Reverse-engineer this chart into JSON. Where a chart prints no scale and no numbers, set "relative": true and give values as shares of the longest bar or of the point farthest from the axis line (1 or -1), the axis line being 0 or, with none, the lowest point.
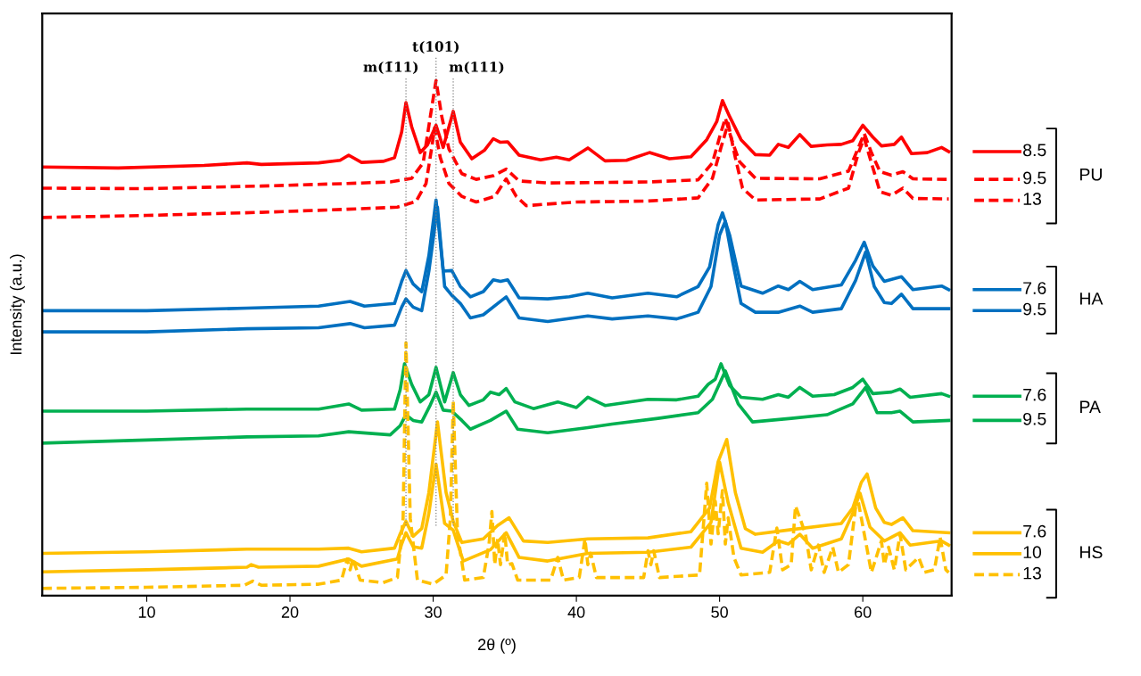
{
  "chart_data": {
    "type": "line",
    "relative": true,
    "xlabel": "2θ (º)",
    "ylabel": "Intensity (a.u.)",
    "xlim": [
      2.7,
      66.2
    ],
    "xticks": [
      10,
      20,
      30,
      40,
      50,
      60
    ],
    "grid": false,
    "legend": "right",
    "marker": "none",
    "annotations": [
      "PU",
      "HA",
      "PA",
      "HS"
    ],
    "ref_lines": [
      {
        "axis": "x",
        "value": 28.1,
        "label": "m(1̄11)",
        "line_style": "dotted",
        "color": "#808080"
      },
      {
        "axis": "x",
        "value": 30.2,
        "label": "t(101)",
        "line_style": "dotted",
        "color": "#808080"
      },
      {
        "axis": "x",
        "value": 31.4,
        "label": "m(111)",
        "line_style": "dotted",
        "color": "#808080"
      }
    ],
    "series": [
      {
        "name": "8.5",
        "color": "#ff0000",
        "line_style": "solid",
        "x": [
          2.7,
          8,
          14,
          17,
          18,
          22,
          23.5,
          24.1,
          25,
          26.5,
          27.3,
          27.8,
          28.1,
          28.5,
          29.1,
          29.6,
          30.2,
          30.7,
          31.4,
          31.9,
          32.7,
          33.6,
          34.2,
          34.7,
          35.2,
          36,
          37.5,
          38.6,
          39.5,
          40.8,
          42,
          43.5,
          45.1,
          46.5,
          48,
          49.1,
          49.8,
          50.2,
          50.7,
          51.5,
          52.5,
          53.5,
          54.1,
          54.8,
          55.6,
          56.4,
          57.5,
          58.5,
          59.3,
          60.0,
          60.7,
          61.3,
          62.2,
          62.7,
          63.4,
          64.5,
          65.5,
          66
        ],
        "values": [
          0.832,
          0.83,
          0.835,
          0.84,
          0.837,
          0.84,
          0.845,
          0.855,
          0.841,
          0.843,
          0.85,
          0.9,
          0.957,
          0.91,
          0.86,
          0.875,
          0.913,
          0.87,
          0.94,
          0.88,
          0.848,
          0.865,
          0.887,
          0.88,
          0.881,
          0.855,
          0.846,
          0.851,
          0.846,
          0.869,
          0.844,
          0.845,
          0.86,
          0.848,
          0.852,
          0.885,
          0.92,
          0.961,
          0.93,
          0.885,
          0.856,
          0.855,
          0.876,
          0.87,
          0.895,
          0.872,
          0.875,
          0.876,
          0.883,
          0.913,
          0.89,
          0.873,
          0.876,
          0.89,
          0.858,
          0.86,
          0.87,
          0.862
        ]
      },
      {
        "name": "9.5",
        "color": "#ff0000",
        "line_style": "dashed",
        "x": [
          2.7,
          10,
          18,
          24,
          27,
          28.5,
          29.3,
          29.8,
          30.2,
          30.6,
          31.1,
          32,
          33,
          34.2,
          35.1,
          36,
          38,
          42,
          45,
          48.5,
          49.5,
          50.0,
          50.4,
          50.9,
          51.4,
          52.5,
          57,
          59,
          59.7,
          60.1,
          60.6,
          61.2,
          62,
          62.8,
          63.5,
          66
        ],
        "values": [
          0.791,
          0.79,
          0.795,
          0.8,
          0.803,
          0.81,
          0.84,
          0.93,
          1.0,
          0.93,
          0.867,
          0.819,
          0.808,
          0.815,
          0.828,
          0.805,
          0.801,
          0.802,
          0.803,
          0.807,
          0.84,
          0.89,
          0.927,
          0.88,
          0.842,
          0.81,
          0.809,
          0.824,
          0.87,
          0.897,
          0.86,
          0.823,
          0.816,
          0.823,
          0.809,
          0.808
        ]
      },
      {
        "name": "13",
        "color": "#ff0000",
        "line_style": "dashed",
        "x": [
          2.7,
          10,
          18,
          24,
          27.5,
          28.8,
          29.5,
          29.9,
          30.1,
          30.5,
          31.1,
          32,
          33,
          34.3,
          35.1,
          35.8,
          36.5,
          40,
          45,
          48.5,
          49.5,
          50.1,
          50.6,
          51.1,
          51.6,
          52.5,
          57,
          59,
          59.7,
          60.1,
          60.6,
          61.2,
          62,
          62.8,
          63.5,
          66
        ],
        "values": [
          0.734,
          0.738,
          0.744,
          0.75,
          0.754,
          0.765,
          0.8,
          0.87,
          0.908,
          0.85,
          0.8,
          0.775,
          0.764,
          0.775,
          0.809,
          0.775,
          0.757,
          0.764,
          0.766,
          0.772,
          0.81,
          0.87,
          0.917,
          0.85,
          0.791,
          0.768,
          0.77,
          0.791,
          0.86,
          0.888,
          0.84,
          0.784,
          0.777,
          0.791,
          0.771,
          0.77
        ]
      },
      {
        "name": "7.6",
        "color": "#0070c0",
        "line_style": "solid",
        "x": [
          2.7,
          10,
          17,
          22,
          24.2,
          25.2,
          27.3,
          27.8,
          28.1,
          28.6,
          29.2,
          29.7,
          30.2,
          30.7,
          31.3,
          31.9,
          32.6,
          33.5,
          34.2,
          34.7,
          35.2,
          36,
          38,
          39.5,
          40.8,
          42.5,
          45,
          47,
          48.5,
          49.3,
          49.9,
          50.2,
          50.7,
          51.5,
          53,
          54.1,
          54.8,
          55.6,
          56.5,
          58.5,
          59.5,
          60.1,
          60.7,
          61.5,
          62.7,
          63.5,
          65.5,
          66
        ],
        "values": [
          0.553,
          0.553,
          0.558,
          0.562,
          0.571,
          0.562,
          0.567,
          0.61,
          0.631,
          0.605,
          0.59,
          0.66,
          0.768,
          0.63,
          0.631,
          0.6,
          0.58,
          0.59,
          0.613,
          0.61,
          0.613,
          0.578,
          0.576,
          0.58,
          0.587,
          0.578,
          0.587,
          0.58,
          0.6,
          0.638,
          0.72,
          0.743,
          0.7,
          0.601,
          0.587,
          0.601,
          0.594,
          0.61,
          0.594,
          0.603,
          0.651,
          0.686,
          0.64,
          0.61,
          0.619,
          0.594,
          0.601,
          0.594
        ]
      },
      {
        "name": "9.5",
        "color": "#0070c0",
        "line_style": "solid",
        "x": [
          2.7,
          10,
          17,
          22,
          24.2,
          25.2,
          27.3,
          27.8,
          28.1,
          28.6,
          29.2,
          29.7,
          30.3,
          30.8,
          31.3,
          31.9,
          32.6,
          33.5,
          34.5,
          35.1,
          36,
          38,
          40.8,
          42.5,
          45,
          47,
          48.5,
          49.4,
          50.0,
          50.4,
          50.9,
          51.5,
          52.5,
          54.1,
          55.6,
          56.5,
          58.5,
          59.5,
          60.2,
          60.8,
          61.5,
          62,
          62.7,
          63.5,
          66
        ],
        "values": [
          0.512,
          0.512,
          0.518,
          0.52,
          0.528,
          0.52,
          0.525,
          0.56,
          0.576,
          0.56,
          0.553,
          0.63,
          0.754,
          0.6,
          0.583,
          0.567,
          0.539,
          0.545,
          0.567,
          0.58,
          0.539,
          0.532,
          0.543,
          0.537,
          0.543,
          0.537,
          0.55,
          0.6,
          0.7,
          0.727,
          0.65,
          0.567,
          0.55,
          0.55,
          0.562,
          0.55,
          0.557,
          0.612,
          0.667,
          0.6,
          0.569,
          0.567,
          0.585,
          0.557,
          0.557
        ]
      },
      {
        "name": "7.6",
        "color": "#00b050",
        "line_style": "solid",
        "x": [
          2.7,
          10,
          17,
          22,
          24.1,
          25,
          27.3,
          27.7,
          28.0,
          28.5,
          29.1,
          29.7,
          30.2,
          30.8,
          31.4,
          31.9,
          32.5,
          33.5,
          34.0,
          34.6,
          35.1,
          35.7,
          37,
          38.7,
          40,
          40.8,
          42,
          45,
          47,
          48.5,
          49.2,
          49.7,
          50.1,
          50.7,
          51.5,
          53,
          54.1,
          54.8,
          55.6,
          56.5,
          58,
          59.3,
          60.0,
          60.7,
          62,
          62.6,
          63.3,
          65.5,
          66
        ],
        "values": [
          0.358,
          0.358,
          0.362,
          0.362,
          0.372,
          0.36,
          0.362,
          0.4,
          0.45,
          0.41,
          0.376,
          0.39,
          0.443,
          0.376,
          0.433,
          0.39,
          0.369,
          0.38,
          0.395,
          0.39,
          0.402,
          0.376,
          0.363,
          0.376,
          0.365,
          0.385,
          0.369,
          0.381,
          0.38,
          0.387,
          0.41,
          0.42,
          0.45,
          0.408,
          0.385,
          0.381,
          0.39,
          0.385,
          0.404,
          0.387,
          0.39,
          0.404,
          0.42,
          0.392,
          0.395,
          0.401,
          0.385,
          0.392,
          0.387
        ]
      },
      {
        "name": "9.5",
        "color": "#00b050",
        "line_style": "solid",
        "x": [
          2.7,
          10,
          17,
          22,
          24.1,
          27,
          27.7,
          28.1,
          28.6,
          29.2,
          29.8,
          30.2,
          30.7,
          31.3,
          32,
          32.6,
          34,
          35.1,
          35.9,
          38,
          40.8,
          42.5,
          45.7,
          48.5,
          49.5,
          50.4,
          51.3,
          52.3,
          55,
          57.5,
          59.3,
          60.2,
          61,
          62,
          62.6,
          63.5,
          66
        ],
        "values": [
          0.296,
          0.302,
          0.308,
          0.31,
          0.318,
          0.312,
          0.33,
          0.351,
          0.34,
          0.337,
          0.37,
          0.395,
          0.36,
          0.358,
          0.34,
          0.323,
          0.34,
          0.358,
          0.323,
          0.316,
          0.326,
          0.333,
          0.344,
          0.355,
          0.381,
          0.436,
          0.372,
          0.337,
          0.344,
          0.351,
          0.372,
          0.404,
          0.355,
          0.355,
          0.358,
          0.337,
          0.34
        ]
      },
      {
        "name": "7.6",
        "color": "#ffc000",
        "line_style": "solid",
        "x": [
          2.7,
          10,
          17,
          22,
          24.1,
          25,
          27.3,
          27.7,
          28.1,
          28.6,
          29.2,
          29.7,
          30.3,
          30.9,
          31.4,
          32,
          33.5,
          34.5,
          35.3,
          36.3,
          38,
          40.8,
          45,
          48,
          49.3,
          49.9,
          50.5,
          51.1,
          51.8,
          52.5,
          55,
          58.5,
          59.3,
          59.9,
          60.3,
          60.9,
          61.5,
          62,
          62.8,
          63.5,
          66
        ],
        "values": [
          0.082,
          0.085,
          0.09,
          0.09,
          0.092,
          0.085,
          0.092,
          0.12,
          0.144,
          0.115,
          0.13,
          0.2,
          0.337,
          0.2,
          0.144,
          0.103,
          0.11,
          0.136,
          0.151,
          0.106,
          0.103,
          0.11,
          0.112,
          0.124,
          0.17,
          0.26,
          0.303,
          0.2,
          0.13,
          0.119,
          0.128,
          0.14,
          0.17,
          0.22,
          0.236,
          0.17,
          0.142,
          0.138,
          0.151,
          0.126,
          0.122
        ]
      },
      {
        "name": "10",
        "color": "#ffc000",
        "line_style": "solid",
        "x": [
          2.7,
          10,
          17,
          17.3,
          17.8,
          22,
          24.1,
          25,
          27.5,
          27.8,
          28.1,
          28.6,
          29.2,
          29.7,
          30.2,
          30.8,
          31.4,
          32.1,
          34,
          35.1,
          36,
          38,
          40.8,
          45,
          48,
          49.4,
          50.0,
          50.6,
          51.5,
          53,
          54.1,
          54.8,
          55.6,
          56.5,
          58.5,
          59.3,
          59.8,
          60.5,
          61.5,
          62.6,
          63.3,
          65.5,
          66
        ],
        "values": [
          0.046,
          0.05,
          0.055,
          0.06,
          0.055,
          0.057,
          0.071,
          0.057,
          0.071,
          0.1,
          0.122,
          0.095,
          0.092,
          0.16,
          0.255,
          0.14,
          0.127,
          0.067,
          0.089,
          0.122,
          0.074,
          0.067,
          0.082,
          0.084,
          0.094,
          0.142,
          0.259,
          0.18,
          0.092,
          0.084,
          0.106,
          0.1,
          0.119,
          0.092,
          0.11,
          0.16,
          0.199,
          0.133,
          0.106,
          0.122,
          0.098,
          0.106,
          0.098
        ]
      },
      {
        "name": "13",
        "color": "#ffc000",
        "line_style": "dashed",
        "x": [
          2.7,
          10,
          16.8,
          17.4,
          18,
          22,
          23.6,
          24.0,
          24.2,
          24.4,
          24.9,
          26.5,
          27.5,
          27.9,
          28.1,
          28.4,
          28.9,
          30,
          30.9,
          31.2,
          31.4,
          31.7,
          32.2,
          33.5,
          33.9,
          34.1,
          34.3,
          34.5,
          34.7,
          35.0,
          35.2,
          35.5,
          35.9,
          38.2,
          38.7,
          39.1,
          40.2,
          40.6,
          40.8,
          41.0,
          41.4,
          44.7,
          45.0,
          45.2,
          45.4,
          45.8,
          48.6,
          49.1,
          49.4,
          49.7,
          49.9,
          50.2,
          50.4,
          50.6,
          51.0,
          51.5,
          53.5,
          54.0,
          54.4,
          55.0,
          55.3,
          55.6,
          56.0,
          56.4,
          56.9,
          57.3,
          57.9,
          58.3,
          59.0,
          59.6,
          60.1,
          60.6,
          61.3,
          61.5,
          61.8,
          62.2,
          62.6,
          63.0,
          63.9,
          64.3,
          65.0,
          65.4,
          65.8,
          66
        ],
        "values": [
          0.014,
          0.016,
          0.02,
          0.028,
          0.02,
          0.022,
          0.03,
          0.071,
          0.05,
          0.071,
          0.03,
          0.025,
          0.035,
          0.15,
          0.491,
          0.15,
          0.03,
          0.022,
          0.04,
          0.15,
          0.378,
          0.12,
          0.03,
          0.035,
          0.1,
          0.163,
          0.06,
          0.11,
          0.06,
          0.122,
          0.06,
          0.062,
          0.03,
          0.03,
          0.074,
          0.03,
          0.035,
          0.11,
          0.06,
          0.082,
          0.035,
          0.035,
          0.087,
          0.06,
          0.087,
          0.035,
          0.04,
          0.218,
          0.1,
          0.183,
          0.12,
          0.204,
          0.1,
          0.151,
          0.074,
          0.04,
          0.045,
          0.131,
          0.05,
          0.06,
          0.174,
          0.151,
          0.119,
          0.05,
          0.098,
          0.045,
          0.094,
          0.045,
          0.06,
          0.195,
          0.12,
          0.045,
          0.106,
          0.06,
          0.094,
          0.05,
          0.119,
          0.05,
          0.074,
          0.045,
          0.05,
          0.113,
          0.05,
          0.045
        ]
      }
    ]
  }
}
